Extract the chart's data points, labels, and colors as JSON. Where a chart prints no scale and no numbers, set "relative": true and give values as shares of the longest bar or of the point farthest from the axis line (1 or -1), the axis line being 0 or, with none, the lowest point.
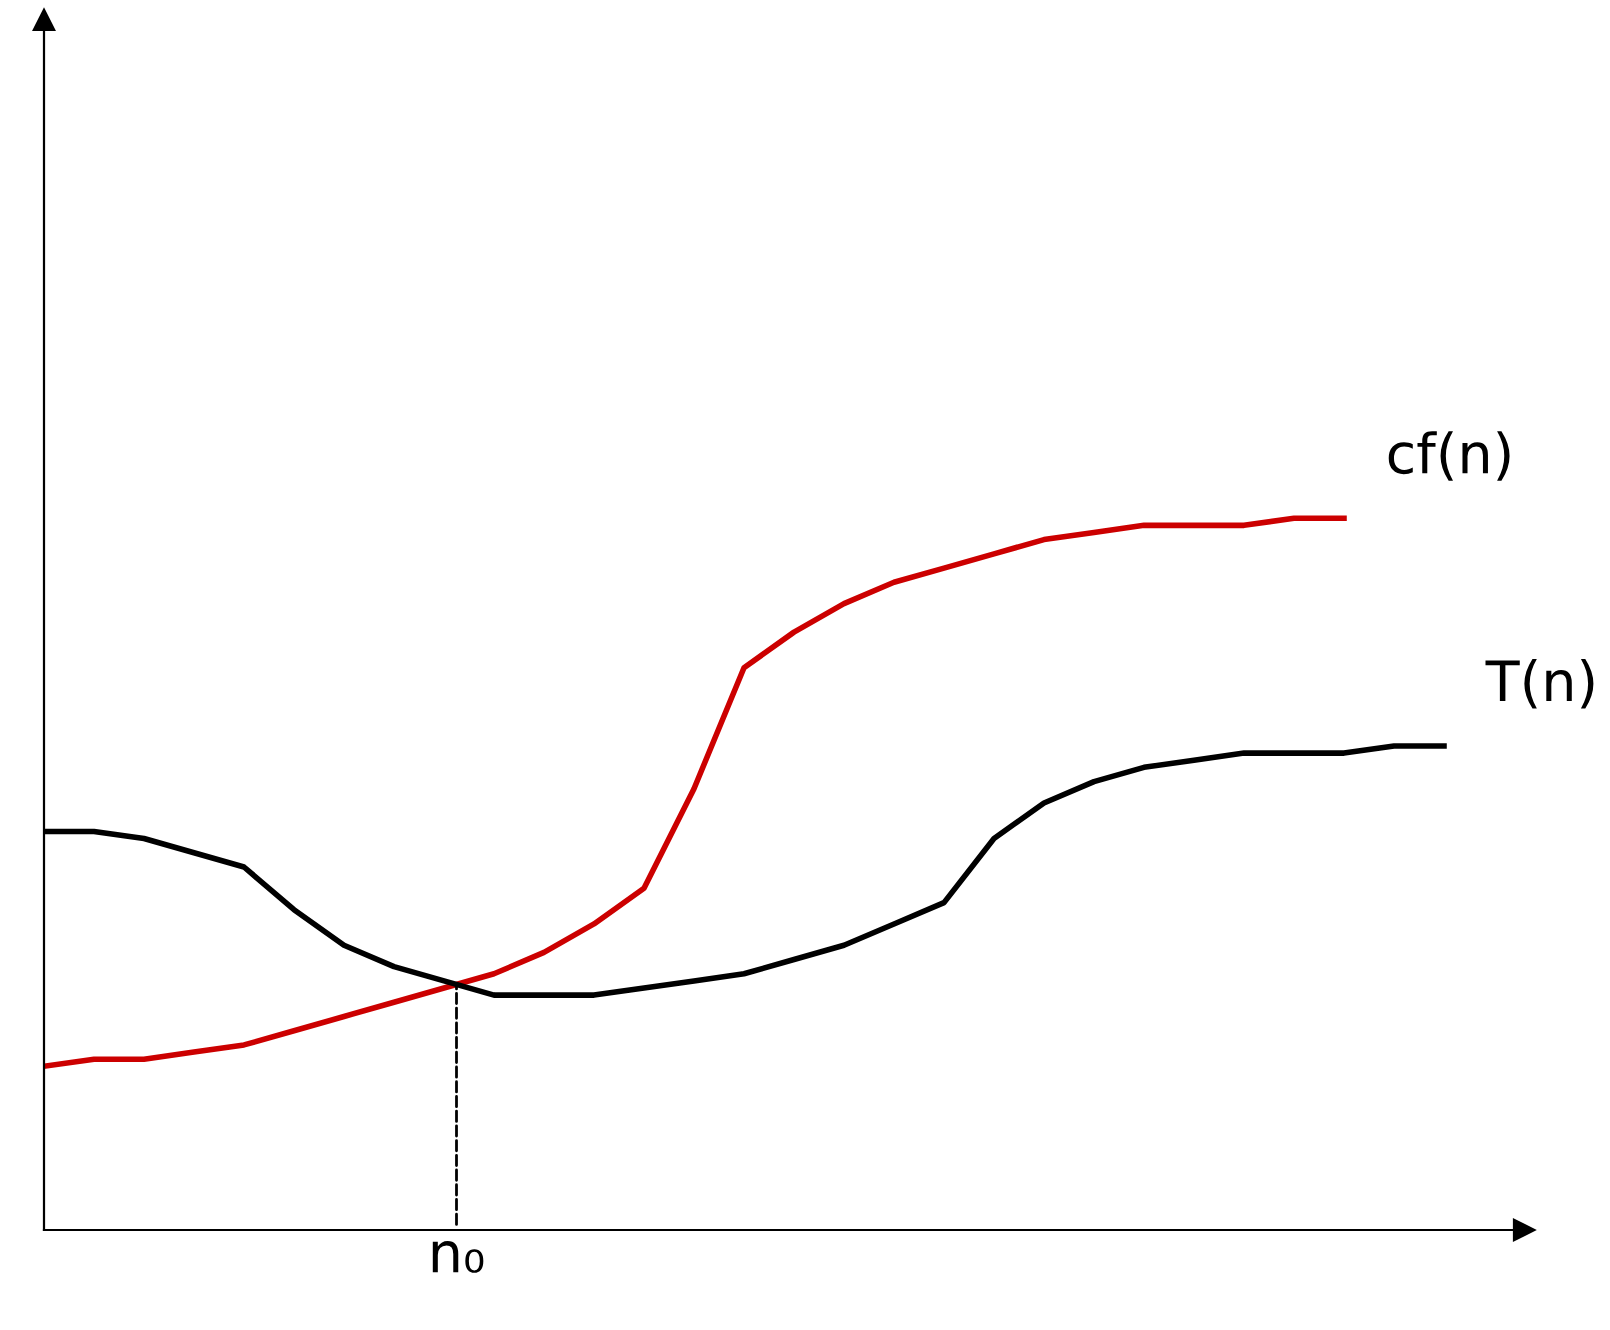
{
  "chart_data": {
    "type": "line",
    "relative": true,
    "categories": [
      null,
      null,
      null,
      null,
      null,
      null,
      null,
      null,
      null,
      null,
      null,
      null,
      null,
      null,
      null,
      null,
      null,
      null,
      null,
      null,
      null,
      null,
      null,
      null,
      null,
      null,
      null,
      null,
      null
    ],
    "legend": false,
    "marker": "none",
    "line_style": "solid",
    "series": [
      {
        "name": "cf(n)",
        "color": "#cc0000",
        "values": [
          0.23,
          0.24,
          0.24,
          0.25,
          0.26,
          0.28,
          0.3,
          0.32,
          0.34,
          0.36,
          0.39,
          0.43,
          0.48,
          0.62,
          0.79,
          0.84,
          0.88,
          0.91,
          0.93,
          0.95,
          0.97,
          0.98,
          0.99,
          0.99,
          0.99,
          1.0,
          1.0,
          null,
          null
        ]
      },
      {
        "name": "T(n)",
        "color": "#000000",
        "values": [
          0.56,
          0.56,
          0.55,
          0.53,
          0.51,
          0.45,
          0.4,
          0.37,
          0.35,
          0.33,
          0.33,
          0.33,
          0.34,
          0.35,
          0.36,
          0.38,
          0.4,
          0.43,
          0.46,
          0.55,
          0.6,
          0.63,
          0.65,
          0.66,
          0.67,
          0.67,
          0.67,
          0.68,
          0.68
        ]
      }
    ],
    "annotations": [
      "n₀"
    ]
  }
}
